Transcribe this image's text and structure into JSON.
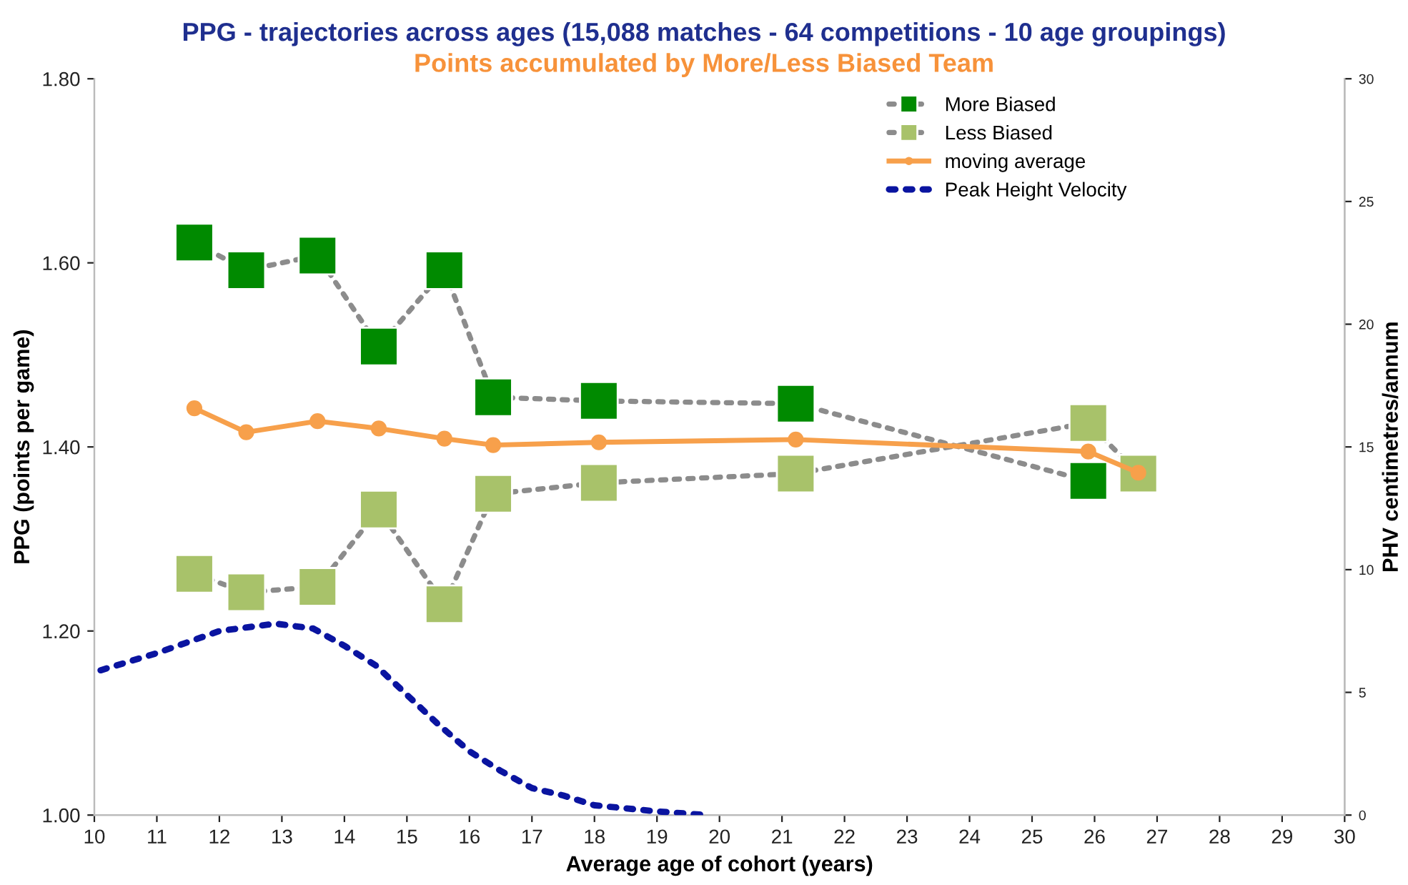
{
  "chart_data": {
    "type": "line",
    "title": "PPG - trajectories across ages (15,088 matches - 64 competitions - 10 age groupings)",
    "subtitle": "Points accumulated by More/Less Biased Team",
    "xlabel": "Average age of cohort (years)",
    "ylabel": "PPG (points per game)",
    "y2label": "PHV centimetres/annum",
    "series": [
      {
        "name": "More Biased",
        "color": "#008a00",
        "marker": "square",
        "line_style": "dotted",
        "x": [
          11.6,
          12.43,
          13.57,
          14.55,
          15.6,
          16.38,
          18.07,
          21.22,
          25.9
        ],
        "values": [
          1.622,
          1.592,
          1.608,
          1.509,
          1.592,
          1.454,
          1.45,
          1.447,
          1.363
        ]
      },
      {
        "name": "Less Biased",
        "color": "#a8c26a",
        "marker": "square",
        "line_style": "dotted",
        "x": [
          11.6,
          12.43,
          13.57,
          14.55,
          15.6,
          16.38,
          18.07,
          21.22,
          25.9,
          26.7
        ],
        "values": [
          1.262,
          1.242,
          1.248,
          1.332,
          1.229,
          1.349,
          1.361,
          1.371,
          1.426,
          1.371
        ]
      },
      {
        "name": "moving average",
        "color": "#f7a04b",
        "marker": "circle",
        "line_style": "solid",
        "x": [
          11.6,
          12.43,
          13.57,
          14.55,
          15.6,
          16.38,
          18.07,
          21.22,
          25.9,
          26.7
        ],
        "values": [
          1.442,
          1.416,
          1.428,
          1.42,
          1.409,
          1.402,
          1.405,
          1.408,
          1.395,
          1.372
        ]
      },
      {
        "name": "Peak Height Velocity",
        "color": "#0a14a0",
        "marker": "none",
        "line_style": "dotted",
        "axis": "y2",
        "x": [
          10.1,
          11,
          12,
          12.9,
          13.5,
          14,
          14.5,
          15,
          15.5,
          16,
          16.5,
          17,
          17.5,
          18,
          19,
          19.8
        ],
        "values": [
          5.9,
          6.6,
          7.5,
          7.8,
          7.6,
          6.9,
          6.1,
          4.9,
          3.7,
          2.6,
          1.8,
          1.1,
          0.8,
          0.4,
          0.15,
          0.0
        ]
      }
    ],
    "xlim": [
      10,
      30
    ],
    "xticks": [
      10,
      11,
      12,
      13,
      14,
      15,
      16,
      17,
      18,
      19,
      20,
      21,
      22,
      23,
      24,
      25,
      26,
      27,
      28,
      29,
      30
    ],
    "ylim": [
      1.0,
      1.8
    ],
    "yticks": [
      {
        "value": 1.0,
        "label": "1.00"
      },
      {
        "value": 1.2,
        "label": "1.20"
      },
      {
        "value": 1.4,
        "label": "1.40"
      },
      {
        "value": 1.6,
        "label": "1.60"
      },
      {
        "value": 1.8,
        "label": "1.80"
      }
    ],
    "y2lim": [
      0,
      30
    ],
    "y2ticks": [
      0,
      5,
      10,
      15,
      20,
      25,
      30
    ],
    "legend": "top right",
    "grid": false
  }
}
